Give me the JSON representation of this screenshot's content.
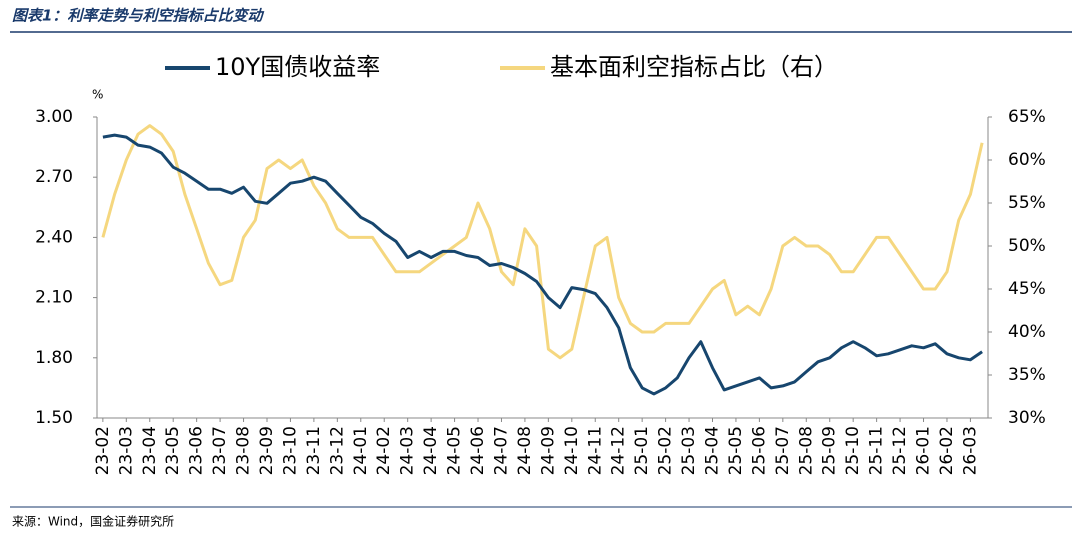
{
  "chart_data": {
    "type": "line",
    "title": "图表1：利率走势与利空指标占比变动",
    "y_unit": "%",
    "source": "来源：Wind，国金证券研究所",
    "categories": [
      "23-02",
      null,
      "23-03",
      null,
      "23-04",
      null,
      "23-05",
      null,
      "23-06",
      null,
      "23-07",
      null,
      "23-08",
      null,
      "23-09",
      null,
      "23-10",
      null,
      "23-11",
      null,
      "23-12",
      null,
      "24-01",
      null,
      "24-02",
      null,
      "24-03",
      null,
      "24-04",
      null,
      "24-05",
      null,
      "24-06",
      null,
      "24-07",
      null,
      "24-08",
      null,
      "24-09",
      null,
      "24-10",
      null,
      "24-11",
      null,
      "24-12",
      null,
      "25-01",
      null,
      "25-02",
      null,
      "25-03",
      null,
      "25-04",
      null,
      "25-05",
      null,
      "25-06",
      null,
      "25-07",
      null,
      "25-08",
      null,
      "25-09",
      null,
      "25-10",
      null,
      "25-11",
      null,
      "25-12",
      null,
      "26-01",
      null,
      "26-02",
      null,
      "26-03",
      null
    ],
    "series": [
      {
        "name": "10Y国债收益率",
        "color": "#17466e",
        "axis": "y",
        "values": [
          2.9,
          2.91,
          2.9,
          2.86,
          2.85,
          2.82,
          2.75,
          2.72,
          2.68,
          2.64,
          2.64,
          2.62,
          2.65,
          2.58,
          2.57,
          2.62,
          2.67,
          2.68,
          2.7,
          2.68,
          2.62,
          2.56,
          2.5,
          2.47,
          2.42,
          2.38,
          2.3,
          2.33,
          2.3,
          2.33,
          2.33,
          2.31,
          2.3,
          2.26,
          2.27,
          2.25,
          2.22,
          2.18,
          2.1,
          2.05,
          2.15,
          2.14,
          2.12,
          2.05,
          1.95,
          1.75,
          1.65,
          1.62,
          1.65,
          1.7,
          1.8,
          1.88,
          1.75,
          1.64,
          1.66,
          1.68,
          1.7,
          1.65,
          1.66,
          1.68,
          1.73,
          1.78,
          1.8,
          1.85,
          1.88,
          1.85,
          1.81,
          1.82,
          1.84,
          1.86,
          1.85,
          1.87,
          1.82,
          1.8,
          1.79,
          1.83
        ]
      },
      {
        "name": "基本面利空指标占比（右）",
        "color": "#f5d77f",
        "axis": "y2",
        "values": [
          51,
          56,
          60,
          63,
          64,
          63,
          61,
          56,
          52,
          48,
          45.5,
          46,
          51,
          53,
          59,
          60,
          59,
          60,
          57,
          55,
          52,
          51,
          51,
          51,
          49,
          47,
          47,
          47,
          48,
          49,
          50,
          51,
          55,
          52,
          47,
          45.5,
          52,
          50,
          38,
          37,
          38,
          44,
          50,
          51,
          44,
          41,
          40,
          40,
          41,
          41,
          41,
          43,
          45,
          46,
          42,
          43,
          42,
          45,
          50,
          51,
          50,
          50,
          49,
          47,
          47,
          49,
          51,
          51,
          49,
          47,
          45,
          45,
          47,
          53,
          56,
          62
        ]
      }
    ],
    "ylim": [
      1.5,
      3.0
    ],
    "yticks": [
      {
        "value": 1.5,
        "label": "1.50"
      },
      {
        "value": 1.8,
        "label": "1.80"
      },
      {
        "value": 2.1,
        "label": "2.10"
      },
      {
        "value": 2.4,
        "label": "2.40"
      },
      {
        "value": 2.7,
        "label": "2.70"
      },
      {
        "value": 3.0,
        "label": "3.00"
      }
    ],
    "y2lim": [
      30,
      65
    ],
    "y2ticks": [
      {
        "value": 30,
        "label": "30%"
      },
      {
        "value": 35,
        "label": "35%"
      },
      {
        "value": 40,
        "label": "40%"
      },
      {
        "value": 45,
        "label": "45%"
      },
      {
        "value": 50,
        "label": "50%"
      },
      {
        "value": 55,
        "label": "55%"
      },
      {
        "value": 60,
        "label": "60%"
      },
      {
        "value": 65,
        "label": "65%"
      }
    ]
  }
}
